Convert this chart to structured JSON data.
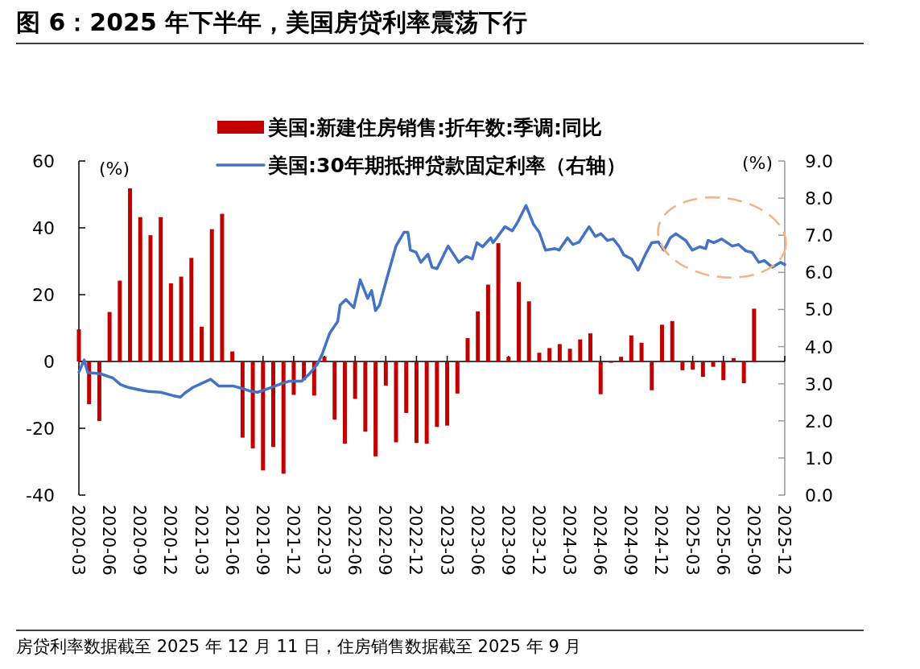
{
  "chart_data": {
    "type": "bar",
    "title": "图 6：2025 年下半年，美国房贷利率震荡下行",
    "ylabel": "(%)",
    "y2label": "(%)",
    "x": [
      "2020-03",
      "2020-04",
      "2020-05",
      "2020-06",
      "2020-07",
      "2020-08",
      "2020-09",
      "2020-10",
      "2020-11",
      "2020-12",
      "2021-01",
      "2021-02",
      "2021-03",
      "2021-04",
      "2021-05",
      "2021-06",
      "2021-07",
      "2021-08",
      "2021-09",
      "2021-10",
      "2021-11",
      "2021-12",
      "2022-01",
      "2022-02",
      "2022-03",
      "2022-04",
      "2022-05",
      "2022-06",
      "2022-07",
      "2022-08",
      "2022-09",
      "2022-10",
      "2022-11",
      "2022-12",
      "2023-01",
      "2023-02",
      "2023-03",
      "2023-04",
      "2023-05",
      "2023-06",
      "2023-07",
      "2023-08",
      "2023-09",
      "2023-10",
      "2023-11",
      "2023-12",
      "2024-01",
      "2024-02",
      "2024-03",
      "2024-04",
      "2024-05",
      "2024-06",
      "2024-07",
      "2024-08",
      "2024-09",
      "2024-10",
      "2024-11",
      "2024-12",
      "2025-01",
      "2025-02",
      "2025-03",
      "2025-04",
      "2025-05",
      "2025-06",
      "2025-07",
      "2025-08",
      "2025-09"
    ],
    "series": [
      {
        "name": "美国:新建住房销售:折年数:季调:同比",
        "color": "#c00000",
        "values": [
          9.6,
          -12.8,
          -17.8,
          14.8,
          24.2,
          51.8,
          43.2,
          37.8,
          43.2,
          23.4,
          25.4,
          31.0,
          10.4,
          39.6,
          44.2,
          3.0,
          -22.8,
          -26.0,
          -32.6,
          -25.6,
          -33.6,
          -10.0,
          -5.6,
          -10.2,
          1.4,
          -17.4,
          -24.6,
          -11.2,
          -21.0,
          -28.4,
          -7.2,
          -24.2,
          -15.4,
          -24.4,
          -24.6,
          -19.6,
          -19.2,
          -9.6,
          7.0,
          15.0,
          23.0,
          35.4,
          1.4,
          23.8,
          18.0,
          2.6,
          4.0,
          5.2,
          3.8,
          6.6,
          8.4,
          -9.8,
          -0.4,
          1.4,
          7.8,
          5.6,
          -8.6,
          11.0,
          12.1,
          -2.6,
          -2.4,
          -4.6,
          -1.6,
          -5.6,
          1.0,
          -6.5,
          15.8
        ]
      },
      {
        "name": "美国:30年期抵押贷款固定利率（右轴）",
        "type": "line",
        "axis": "y2",
        "color": "#4472c4",
        "x": [
          "2020-03-01",
          "2020-03-17",
          "2020-03-28",
          "2020-05-04",
          "2020-06-10",
          "2020-07-03",
          "2020-07-27",
          "2020-09-02",
          "2020-09-26",
          "2020-11-01",
          "2020-12-07",
          "2020-12-30",
          "2021-01-12",
          "2021-02-05",
          "2021-03-11",
          "2021-03-28",
          "2021-04-21",
          "2021-06-03",
          "2021-06-27",
          "2021-07-21",
          "2021-08-15",
          "2021-09-20",
          "2021-10-25",
          "2021-11-19",
          "2021-12-25",
          "2022-01-18",
          "2022-02-11",
          "2022-02-23",
          "2022-03-17",
          "2022-04-10",
          "2022-04-17",
          "2022-05-04",
          "2022-05-28",
          "2022-06-16",
          "2022-07-08",
          "2022-07-20",
          "2022-08-01",
          "2022-08-13",
          "2022-09-02",
          "2022-10-01",
          "2022-10-25",
          "2022-11-06",
          "2022-11-13",
          "2022-11-30",
          "2022-12-14",
          "2023-01-05",
          "2023-01-17",
          "2023-02-01",
          "2023-03-04",
          "2023-04-05",
          "2023-04-28",
          "2023-05-15",
          "2023-05-29",
          "2023-06-15",
          "2023-07-09",
          "2023-07-16",
          "2023-08-21",
          "2023-09-12",
          "2023-09-27",
          "2023-10-23",
          "2023-11-14",
          "2023-12-01",
          "2023-12-20",
          "2024-01-18",
          "2024-01-30",
          "2024-02-23",
          "2024-03-10",
          "2024-03-29",
          "2024-04-27",
          "2024-05-16",
          "2024-06-02",
          "2024-06-21",
          "2024-07-08",
          "2024-07-27",
          "2024-08-09",
          "2024-09-02",
          "2024-09-21",
          "2024-10-12",
          "2024-11-01",
          "2024-11-20",
          "2024-12-07",
          "2024-12-26",
          "2025-01-12",
          "2025-02-10",
          "2025-02-28",
          "2025-03-23",
          "2025-04-09",
          "2025-04-16",
          "2025-05-03",
          "2025-05-27",
          "2025-06-27",
          "2025-07-16",
          "2025-08-07",
          "2025-08-26",
          "2025-09-15",
          "2025-10-01",
          "2025-10-25",
          "2025-11-18",
          "2025-12-01"
        ],
        "values": [
          3.31,
          3.64,
          3.3,
          3.27,
          3.16,
          2.98,
          2.9,
          2.83,
          2.79,
          2.77,
          2.68,
          2.64,
          2.75,
          2.9,
          3.05,
          3.12,
          2.94,
          2.94,
          2.88,
          2.81,
          2.77,
          2.88,
          3.0,
          3.07,
          3.07,
          3.27,
          3.55,
          3.8,
          4.36,
          4.68,
          5.12,
          5.27,
          5.05,
          5.8,
          5.3,
          5.51,
          4.97,
          5.12,
          5.77,
          6.71,
          7.08,
          7.08,
          6.6,
          6.54,
          6.27,
          6.49,
          6.14,
          6.1,
          6.71,
          6.27,
          6.43,
          6.36,
          6.8,
          6.69,
          6.93,
          6.8,
          7.23,
          7.12,
          7.34,
          7.8,
          7.3,
          7.08,
          6.6,
          6.64,
          6.6,
          6.93,
          6.75,
          6.82,
          7.23,
          6.97,
          7.04,
          6.86,
          6.9,
          6.69,
          6.47,
          6.36,
          6.06,
          6.47,
          6.8,
          6.82,
          6.6,
          6.93,
          7.04,
          6.86,
          6.6,
          6.69,
          6.64,
          6.86,
          6.8,
          6.9,
          6.71,
          6.75,
          6.58,
          6.54,
          6.27,
          6.32,
          6.14,
          6.27,
          6.21
        ]
      }
    ],
    "xlim": [
      "2020-03",
      "2025-12"
    ],
    "xticks": [
      "2020-03",
      "2020-06",
      "2020-09",
      "2020-12",
      "2021-03",
      "2021-06",
      "2021-09",
      "2021-12",
      "2022-03",
      "2022-06",
      "2022-09",
      "2022-12",
      "2023-03",
      "2023-06",
      "2023-09",
      "2023-12",
      "2024-03",
      "2024-06",
      "2024-09",
      "2024-12",
      "2025-03",
      "2025-06",
      "2025-09",
      "2025-12"
    ],
    "ylim": [
      -40,
      60
    ],
    "yticks": [
      -40,
      -20,
      0,
      20,
      40,
      60
    ],
    "y2lim": [
      0,
      9
    ],
    "y2ticks": [
      {
        "value": 0,
        "label": "0.0"
      },
      {
        "value": 1,
        "label": "1.0"
      },
      {
        "value": 2,
        "label": "2.0"
      },
      {
        "value": 3,
        "label": "3.0"
      },
      {
        "value": 4,
        "label": "4.0"
      },
      {
        "value": 5,
        "label": "5.0"
      },
      {
        "value": 6,
        "label": "6.0"
      },
      {
        "value": 7,
        "label": "7.0"
      },
      {
        "value": 8,
        "label": "8.0"
      },
      {
        "value": 9,
        "label": "9.0"
      }
    ],
    "legend": "top",
    "annotations": [
      "房贷利率数据截至 2025 年 12 月 11 日，住房销售数据截至 2025 年 9 月"
    ]
  }
}
